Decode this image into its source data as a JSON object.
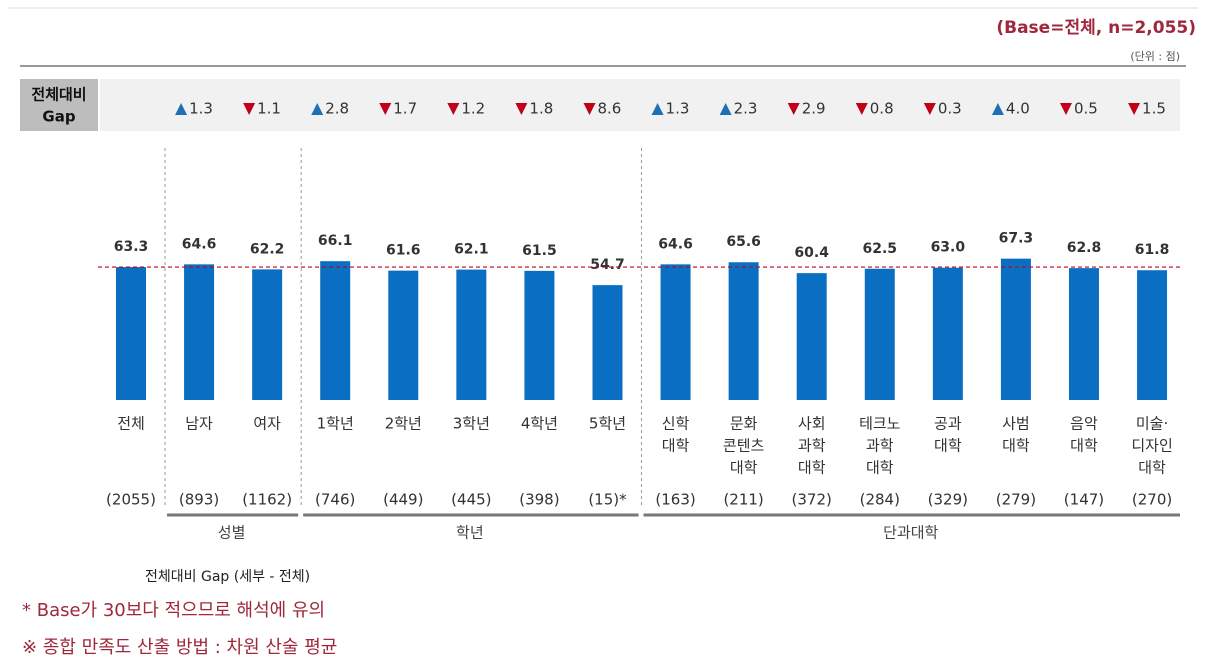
{
  "chart_data": {
    "type": "bar",
    "base_note": "(Base=전체,  n=2,055)",
    "unit": "(단위 : 점)",
    "gap_header": [
      "전체대비",
      "Gap"
    ],
    "categories": [
      [
        "전체"
      ],
      [
        "남자"
      ],
      [
        "여자"
      ],
      [
        "1학년"
      ],
      [
        "2학년"
      ],
      [
        "3학년"
      ],
      [
        "4학년"
      ],
      [
        "5학년"
      ],
      [
        "신학",
        "대학"
      ],
      [
        "문화",
        "콘텐츠",
        "대학"
      ],
      [
        "사회",
        "과학",
        "대학"
      ],
      [
        "테크노",
        "과학",
        "대학"
      ],
      [
        "공과",
        "대학"
      ],
      [
        "사범",
        "대학"
      ],
      [
        "음악",
        "대학"
      ],
      [
        "미술·",
        "디자인",
        "대학"
      ]
    ],
    "values": [
      63.3,
      64.6,
      62.2,
      66.1,
      61.6,
      62.1,
      61.5,
      54.7,
      64.6,
      65.6,
      60.4,
      62.5,
      63.0,
      67.3,
      62.8,
      61.8
    ],
    "value_labels": [
      "63.3",
      "64.6",
      "62.2",
      "66.1",
      "61.6",
      "62.1",
      "61.5",
      "54.7",
      "64.6",
      "65.6",
      "60.4",
      "62.5",
      "63.0",
      "67.3",
      "62.8",
      "61.8"
    ],
    "color": "#0a6fc2",
    "ylim": [
      0,
      100
    ],
    "gap": [
      null,
      1.3,
      -1.1,
      2.8,
      -1.7,
      -1.2,
      -1.8,
      -8.6,
      1.3,
      2.3,
      -2.9,
      -0.8,
      -0.3,
      4.0,
      -0.5,
      -1.5
    ],
    "gap_labels": [
      null,
      "1.3",
      "1.1",
      "2.8",
      "1.7",
      "1.2",
      "1.8",
      "8.6",
      "1.3",
      "2.3",
      "2.9",
      "0.8",
      "0.3",
      "4.0",
      "0.5",
      "1.5"
    ],
    "up_color": "#1f6fb5",
    "down_color": "#c0001a",
    "reference_color": "#c0001a",
    "n": [
      2055,
      893,
      1162,
      746,
      449,
      445,
      398,
      15,
      163,
      211,
      372,
      284,
      329,
      279,
      147,
      270
    ],
    "n_labels": [
      "(2055)",
      "(893)",
      "(1162)",
      "(746)",
      "(449)",
      "(445)",
      "(398)",
      "(15)*",
      "(163)",
      "(211)",
      "(372)",
      "(284)",
      "(329)",
      "(279)",
      "(147)",
      "(270)"
    ],
    "groups": [
      {
        "name": "성별",
        "span": [
          1,
          2
        ]
      },
      {
        "name": "학년",
        "span": [
          3,
          7
        ]
      },
      {
        "name": "단과대학",
        "span": [
          8,
          15
        ]
      }
    ],
    "legend_note": "전체대비 Gap (세부 - 전체)",
    "footnotes": [
      "* Base가 30보다 적으므로 해석에 유의",
      "※ 종합 만족도 산출 방법 : 차원 산술 평균"
    ]
  }
}
